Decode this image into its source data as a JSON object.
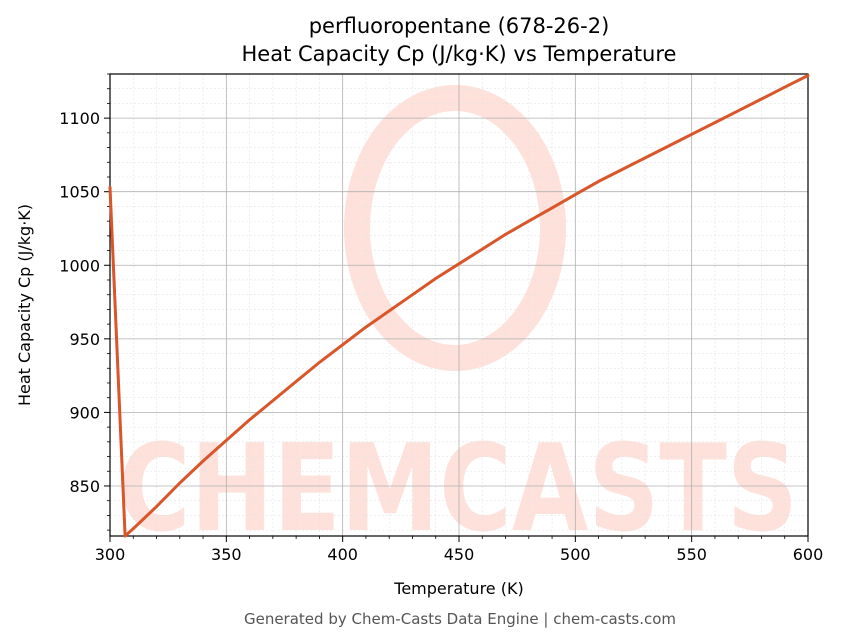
{
  "chart_data": {
    "type": "line",
    "title": "perfluoropentane (678-26-2)",
    "subtitle": "Heat Capacity Cp (J/kg·K) vs Temperature",
    "xlabel": "Temperature (K)",
    "ylabel": "Heat Capacity Cp (J/kg·K)",
    "xlim": [
      300,
      600
    ],
    "ylim": [
      816,
      1130
    ],
    "x_ticks": [
      300,
      350,
      400,
      450,
      500,
      550,
      600
    ],
    "y_ticks": [
      850,
      900,
      950,
      1000,
      1050,
      1100
    ],
    "grid": true,
    "series": [
      {
        "x": [
          300,
          306.5,
          310,
          320,
          330,
          340,
          350,
          360,
          370,
          380,
          390,
          400,
          410,
          420,
          430,
          440,
          450,
          460,
          470,
          480,
          490,
          500,
          510,
          520,
          530,
          540,
          550,
          560,
          570,
          580,
          590,
          600
        ],
        "values": [
          1053,
          816,
          821,
          836,
          852,
          867,
          881,
          895,
          908,
          921,
          934,
          946,
          958,
          969,
          980,
          991,
          1001,
          1011,
          1021,
          1030,
          1039,
          1048,
          1057,
          1065,
          1073,
          1081,
          1089,
          1097,
          1105,
          1113,
          1121,
          1129
        ],
        "color": "#d9552a"
      }
    ]
  },
  "watermark": {
    "text": "CHEMCASTS",
    "color": "#fde1da"
  },
  "footer": "Generated by Chem-Casts Data Engine | chem-casts.com"
}
